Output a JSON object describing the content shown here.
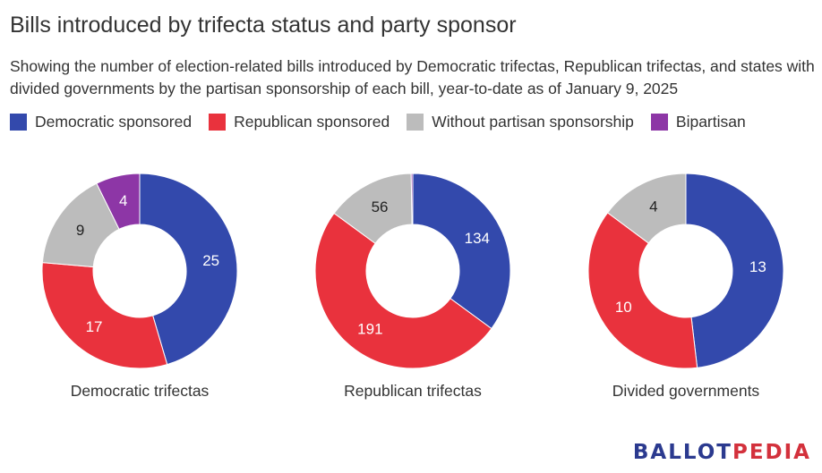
{
  "header": {
    "title": "Bills introduced by trifecta status and party sponsor",
    "subtitle": "Showing the number of election-related bills introduced by Democratic trifectas, Republican trifectas, and states with divided governments by the partisan sponsorship of each bill, year-to-date as of January 9, 2025"
  },
  "legend": [
    {
      "label": "Democratic sponsored",
      "color": "#3349ac"
    },
    {
      "label": "Republican sponsored",
      "color": "#e9323d"
    },
    {
      "label": "Without partisan sponsorship",
      "color": "#bcbcbc"
    },
    {
      "label": "Bipartisan",
      "color": "#8d36a6"
    }
  ],
  "chart_data": [
    {
      "type": "pie",
      "title": "Democratic trifectas",
      "categories": [
        "Democratic sponsored",
        "Republican sponsored",
        "Without partisan sponsorship",
        "Bipartisan"
      ],
      "values": [
        25,
        17,
        9,
        4
      ]
    },
    {
      "type": "pie",
      "title": "Republican trifectas",
      "categories": [
        "Democratic sponsored",
        "Republican sponsored",
        "Without partisan sponsorship",
        "Bipartisan"
      ],
      "values": [
        134,
        191,
        56,
        1
      ]
    },
    {
      "type": "pie",
      "title": "Divided governments",
      "categories": [
        "Democratic sponsored",
        "Republican sponsored",
        "Without partisan sponsorship",
        "Bipartisan"
      ],
      "values": [
        13,
        10,
        4,
        0
      ]
    }
  ],
  "branding": {
    "logo_part1": "BALLOT",
    "logo_part2": "PEDIA"
  }
}
